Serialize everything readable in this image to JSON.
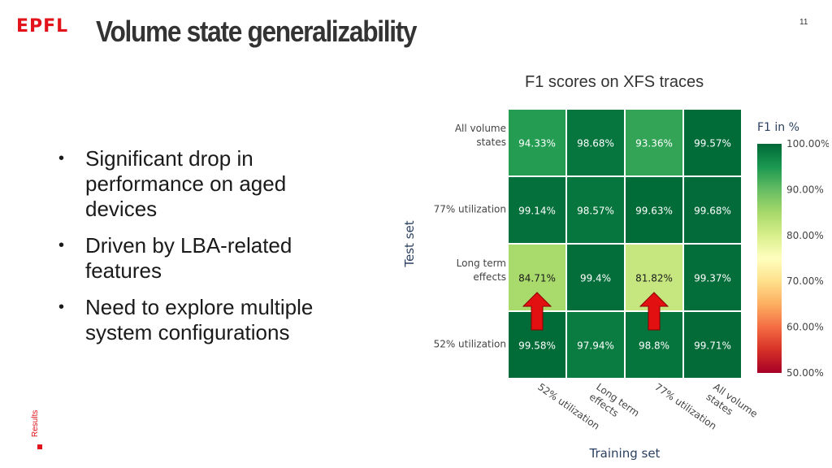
{
  "logo_text": "EPFL",
  "slide_title": "Volume state generalizability",
  "page_number": "11",
  "section_label": "Results",
  "bullets": [
    "Significant drop in performance on aged devices",
    "Driven by LBA-related features",
    "Need to explore multiple system configurations"
  ],
  "chart_title": "F1 scores on XFS traces",
  "chart_data": {
    "type": "heatmap",
    "xlabel": "Training set",
    "ylabel": "Test set",
    "x_categories": [
      "52% utilization",
      "Long term effects",
      "77% utilization",
      "All volume states"
    ],
    "y_categories": [
      "All volume states",
      "77% utilization",
      "Long term effects",
      "52% utilization"
    ],
    "values": [
      [
        94.33,
        98.68,
        93.36,
        99.57
      ],
      [
        99.14,
        98.57,
        99.63,
        99.68
      ],
      [
        84.71,
        99.4,
        81.82,
        99.37
      ],
      [
        99.58,
        97.94,
        98.8,
        99.71
      ]
    ],
    "cell_labels": [
      [
        "94.33%",
        "98.68%",
        "93.36%",
        "99.57%"
      ],
      [
        "99.14%",
        "98.57%",
        "99.63%",
        "99.68%"
      ],
      [
        "84.71%",
        "99.4%",
        "81.82%",
        "99.37%"
      ],
      [
        "99.58%",
        "97.94%",
        "98.8%",
        "99.71%"
      ]
    ],
    "colorbar": {
      "title": "F1 in %",
      "range": [
        50,
        100
      ],
      "ticks": [
        100,
        90,
        80,
        70,
        60,
        50
      ],
      "tick_labels": [
        "100.00%",
        "90.00%",
        "80.00%",
        "70.00%",
        "60.00%",
        "50.00%"
      ]
    },
    "annotations": [
      {
        "type": "arrow-up",
        "color": "#e21010",
        "row": 2,
        "col": 0
      },
      {
        "type": "arrow-up",
        "color": "#e21010",
        "row": 2,
        "col": 2
      }
    ]
  }
}
